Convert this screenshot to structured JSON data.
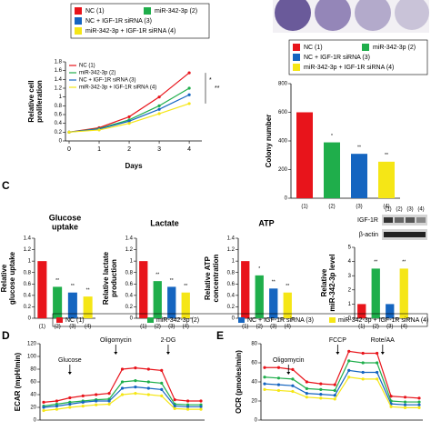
{
  "chart_data": [
    {
      "type": "line",
      "ylabel": [
        "Relative cell",
        "proliferation"
      ],
      "xlabel": "Days",
      "x": [
        0,
        1,
        2,
        3,
        4
      ],
      "xlim": [
        0,
        4.3
      ],
      "xticks": [
        0,
        1,
        2,
        3,
        4
      ],
      "ylim": [
        0,
        1.8
      ],
      "yticks": [
        0,
        0.2,
        0.4,
        0.6,
        0.8,
        1,
        1.2,
        1.4,
        1.6,
        1.8
      ],
      "series": [
        {
          "name": "NC (1)",
          "color": "#e8141b",
          "values": [
            0.2,
            0.3,
            0.55,
            1.0,
            1.55
          ]
        },
        {
          "name": "miR-342-3p (2)",
          "color": "#1fae4b",
          "values": [
            0.2,
            0.28,
            0.48,
            0.8,
            1.2
          ]
        },
        {
          "name": "NC + IGF-1R siRNA (3)",
          "color": "#1565c0",
          "values": [
            0.2,
            0.27,
            0.45,
            0.72,
            1.05
          ]
        },
        {
          "name": "miR-342-3p + IGF-1R siRNA (4)",
          "color": "#f5e616",
          "values": [
            0.2,
            0.25,
            0.4,
            0.62,
            0.85
          ]
        }
      ],
      "annotations": [
        "*",
        "**"
      ],
      "group_legend": [
        {
          "name": "NC (1)",
          "color": "#e8141b"
        },
        {
          "name": "miR-342-3p (2)",
          "color": "#1fae4b"
        },
        {
          "name": "NC + IGF-1R siRNA (3)",
          "color": "#1565c0"
        },
        {
          "name": "miR-342-3p + IGF-1R siRNA (4)",
          "color": "#f5e616"
        }
      ]
    },
    {
      "type": "bar",
      "ylabel": [
        "Colony number"
      ],
      "categories": [
        "(1)",
        "(2)",
        "(3)",
        "(4)"
      ],
      "values": [
        600,
        390,
        310,
        255
      ],
      "colors": [
        "#e8141b",
        "#1fae4b",
        "#1565c0",
        "#f5e616"
      ],
      "ylim": [
        0,
        800
      ],
      "yticks": [
        0,
        200,
        400,
        600,
        800
      ],
      "annotations": [
        null,
        "*",
        "**",
        "**"
      ],
      "legend_entries": [
        "NC (1)",
        "miR-342-3p (2)",
        "NC + IGF-1R siRNA (3)",
        "miR-342-3p + IGF-1R siRNA (4)"
      ]
    },
    {
      "type": "bar",
      "title": [
        "Glucose",
        "uptake"
      ],
      "ylabel": [
        "Relative",
        "glucose uptake"
      ],
      "categories": [
        "(1)",
        "(2)",
        "(3)",
        "(4)"
      ],
      "values": [
        1.0,
        0.55,
        0.45,
        0.38
      ],
      "colors": [
        "#e8141b",
        "#1fae4b",
        "#1565c0",
        "#f5e616"
      ],
      "ylim": [
        0,
        1.4
      ],
      "yticks": [
        0,
        0.2,
        0.4,
        0.6,
        0.8,
        1,
        1.2,
        1.4
      ],
      "annotations": [
        null,
        "**",
        "**",
        "**"
      ]
    },
    {
      "type": "bar",
      "title": [
        "Lactate"
      ],
      "ylabel": [
        "Relative lactate",
        "production"
      ],
      "categories": [
        "(1)",
        "(2)",
        "(3)",
        "(4)"
      ],
      "values": [
        1.0,
        0.65,
        0.55,
        0.45
      ],
      "colors": [
        "#e8141b",
        "#1fae4b",
        "#1565c0",
        "#f5e616"
      ],
      "ylim": [
        0,
        1.4
      ],
      "yticks": [
        0,
        0.2,
        0.4,
        0.6,
        0.8,
        1,
        1.2,
        1.4
      ],
      "annotations": [
        null,
        "**",
        "**",
        "**"
      ]
    },
    {
      "type": "bar",
      "title": [
        "ATP"
      ],
      "ylabel": [
        "Relative ATP",
        "concentration"
      ],
      "categories": [
        "(1)",
        "(2)",
        "(3)",
        "(4)"
      ],
      "values": [
        1.0,
        0.75,
        0.52,
        0.45
      ],
      "colors": [
        "#e8141b",
        "#1fae4b",
        "#1565c0",
        "#f5e616"
      ],
      "ylim": [
        0,
        1.4
      ],
      "yticks": [
        0,
        0.2,
        0.4,
        0.6,
        0.8,
        1,
        1.2,
        1.4
      ],
      "annotations": [
        null,
        "*",
        "**",
        "**"
      ]
    },
    {
      "type": "bar",
      "ylabel": [
        "Relative",
        "miR-342-3p level"
      ],
      "categories": [
        "(1)",
        "(2)",
        "(3)",
        "(4)"
      ],
      "values": [
        1.0,
        3.5,
        1.0,
        3.5
      ],
      "colors": [
        "#e8141b",
        "#1fae4b",
        "#1565c0",
        "#f5e616"
      ],
      "ylim": [
        0,
        5
      ],
      "yticks": [
        0,
        1,
        2,
        3,
        4,
        5
      ],
      "annotations": [
        null,
        "**",
        null,
        "**"
      ]
    },
    {
      "type": "line",
      "ylabel": [
        "ECAR (mpH/min)"
      ],
      "xlim": [
        0,
        12
      ],
      "ylim": [
        0,
        120
      ],
      "yticks": [
        0,
        20,
        40,
        60,
        80,
        100,
        120
      ],
      "series": [
        {
          "name": "NC (1)",
          "color": "#e8141b",
          "values": [
            28,
            30,
            35,
            38,
            40,
            42,
            80,
            82,
            80,
            78,
            32,
            30,
            30
          ]
        },
        {
          "name": "miR-342-3p (2)",
          "color": "#1fae4b",
          "values": [
            22,
            25,
            28,
            30,
            32,
            33,
            60,
            62,
            60,
            58,
            25,
            24,
            24
          ]
        },
        {
          "name": "NC + IGF-1R siRNA (3)",
          "color": "#1565c0",
          "values": [
            20,
            22,
            25,
            28,
            30,
            30,
            50,
            52,
            50,
            48,
            22,
            21,
            21
          ]
        },
        {
          "name": "miR-342-3p + IGF-1R siRNA (4)",
          "color": "#f5e616",
          "values": [
            15,
            17,
            20,
            22,
            24,
            25,
            40,
            42,
            40,
            38,
            18,
            17,
            17
          ]
        }
      ],
      "annotations": [
        "Glucose",
        "Oligomycin",
        "2-DG"
      ]
    },
    {
      "type": "line",
      "ylabel": [
        "OCR (pmoles/min)"
      ],
      "xlim": [
        0,
        11
      ],
      "ylim": [
        0,
        80
      ],
      "yticks": [
        0,
        20,
        40,
        60,
        80
      ],
      "series": [
        {
          "color": "#e8141b",
          "values": [
            55,
            55,
            53,
            40,
            38,
            37,
            72,
            70,
            70,
            25,
            24,
            23
          ]
        },
        {
          "color": "#1fae4b",
          "values": [
            45,
            44,
            43,
            33,
            32,
            31,
            62,
            60,
            60,
            20,
            19,
            19
          ]
        },
        {
          "color": "#1565c0",
          "values": [
            38,
            37,
            36,
            28,
            27,
            26,
            52,
            50,
            50,
            17,
            16,
            16
          ]
        },
        {
          "color": "#f5e616",
          "values": [
            32,
            31,
            30,
            24,
            23,
            22,
            45,
            43,
            43,
            14,
            13,
            13
          ]
        }
      ],
      "annotations": [
        "Oligomycin",
        "FCCP",
        "Rote/AA"
      ]
    }
  ],
  "panel_labels": [
    "C",
    "D",
    "E"
  ],
  "blot": {
    "lanes": [
      "(1)",
      "(2)",
      "(3)",
      "(4)"
    ],
    "rows": [
      "IGF-1R",
      "β-actin"
    ]
  }
}
